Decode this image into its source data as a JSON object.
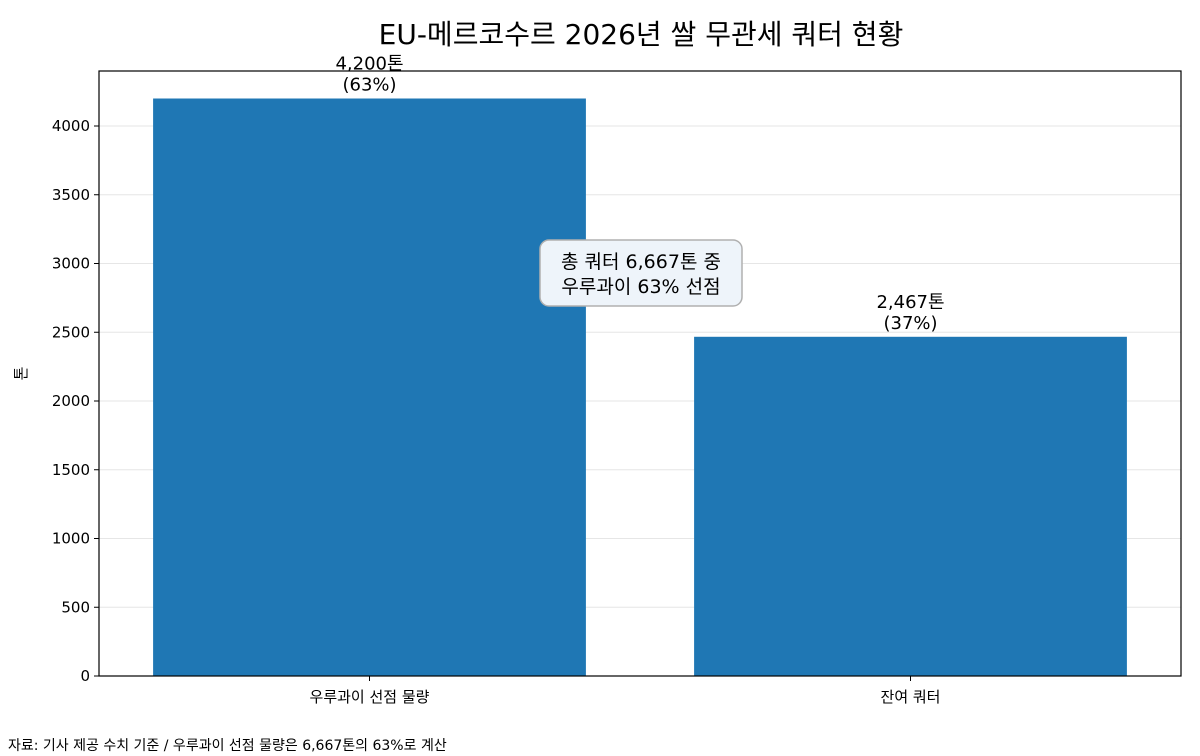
{
  "chart_data": {
    "type": "bar",
    "title": "EU-메르코수르 2026년 쌀 무관세 쿼터 현황",
    "xlabel": "",
    "ylabel": "톤",
    "categories": [
      "우루과이 선점 물량",
      "잔여 쿼터"
    ],
    "values": [
      4200,
      2467
    ],
    "value_labels": [
      [
        "4,200톤",
        "(63%)"
      ],
      [
        "2,467톤",
        "(37%)"
      ]
    ],
    "ylim": [
      0,
      4400
    ],
    "yticks": [
      0,
      500,
      1000,
      1500,
      2000,
      2500,
      3000,
      3500,
      4000
    ],
    "grid": "horizontal",
    "bar_color": "#1f77b4",
    "annotation": [
      "총 쿼터 6,667톤 중",
      "우루과이 63% 선점"
    ],
    "caption": "자료: 기사 제공 수치 기준 / 우루과이 선점 물량은 6,667톤의 63%로 계산"
  }
}
